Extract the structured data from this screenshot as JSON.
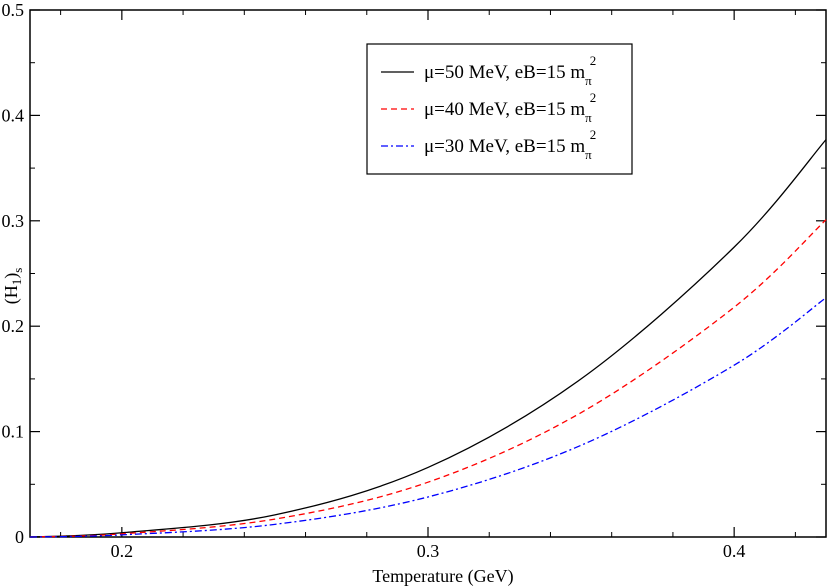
{
  "chart_data": {
    "type": "line",
    "title": "",
    "xlabel": "Temperature (GeV)",
    "ylabel": {
      "main": "(H",
      "sub1": "1",
      "mid": ")",
      "sub2": "s"
    },
    "xlim": [
      0.17,
      0.43
    ],
    "ylim": [
      0,
      0.5
    ],
    "x_ticks": [
      0.2,
      0.3,
      0.4
    ],
    "x_tick_labels": [
      "0.2",
      "0.3",
      "0.4"
    ],
    "y_ticks": [
      0,
      0.1,
      0.2,
      0.3,
      0.4,
      0.5
    ],
    "y_tick_labels": [
      "0",
      "0.1",
      "0.2",
      "0.3",
      "0.4",
      "0.5"
    ],
    "grid": false,
    "legend_position": "top-right",
    "x": [
      0.17,
      0.2,
      0.25,
      0.3,
      0.35,
      0.4,
      0.43
    ],
    "series": [
      {
        "name": "μ=50 MeV, eB=15 m",
        "legend": {
          "main": "μ=50 MeV, eB=15 m",
          "sub": "π",
          "sup": "2"
        },
        "color": "#000000",
        "dash": "solid",
        "values": [
          0.0,
          0.004,
          0.021,
          0.066,
          0.15,
          0.275,
          0.377
        ]
      },
      {
        "name": "μ=40 MeV, eB=15 m",
        "legend": {
          "main": "μ=40 MeV, eB=15 m",
          "sub": "π",
          "sup": "2"
        },
        "color": "#ff0000",
        "dash": "dashed",
        "values": [
          0.0,
          0.003,
          0.017,
          0.052,
          0.118,
          0.218,
          0.301
        ]
      },
      {
        "name": "μ=30 MeV, eB=15 m",
        "legend": {
          "main": "μ=30 MeV, eB=15 m",
          "sub": "π",
          "sup": "2"
        },
        "color": "#0000ff",
        "dash": "dash-dot",
        "values": [
          0.0,
          0.002,
          0.012,
          0.038,
          0.087,
          0.163,
          0.227
        ]
      }
    ]
  }
}
